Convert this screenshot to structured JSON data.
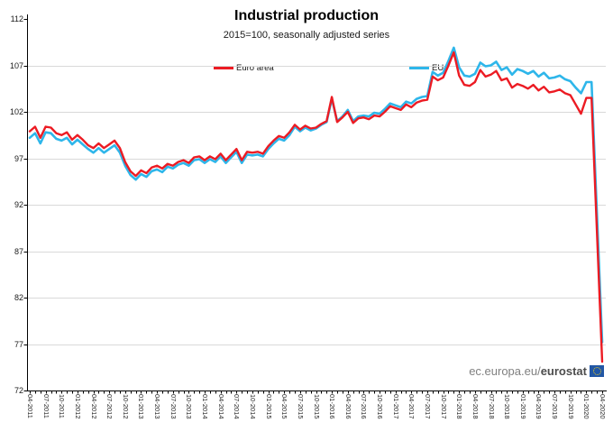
{
  "title": "Industrial production",
  "subtitle": "2015=100, seasonally adjusted series",
  "watermark": {
    "prefix": "ec.europa.eu/",
    "brand": "eurostat",
    "logo": "eu-flag-icon"
  },
  "chart_data": {
    "type": "line",
    "title": "Industrial production",
    "subtitle": "2015=100, seasonally adjusted series",
    "x_start": "04-2011",
    "x_end": "04-2020",
    "x_frequency": "monthly",
    "x_tick_labels": [
      "04-2011",
      "07-2011",
      "10-2011",
      "01-2012",
      "04-2012",
      "07-2012",
      "10-2012",
      "01-2013",
      "04-2013",
      "07-2013",
      "10-2013",
      "01-2014",
      "04-2014",
      "07-2014",
      "10-2014",
      "01-2015",
      "04-2015",
      "07-2015",
      "10-2015",
      "01-2016",
      "04-2016",
      "07-2016",
      "10-2016",
      "01-2017",
      "04-2017",
      "07-2017",
      "10-2017",
      "01-2018",
      "04-2018",
      "07-2018",
      "10-2018",
      "01-2019",
      "04-2019",
      "07-2019",
      "10-2019",
      "01-2020",
      "04-2020"
    ],
    "ylim": [
      72,
      112
    ],
    "yticks": [
      72,
      77,
      82,
      87,
      92,
      97,
      102,
      107,
      112
    ],
    "grid": "horizontal",
    "legend_position": "top",
    "colors": {
      "grid": "#d9d9d9",
      "axis": "#000000"
    },
    "series": [
      {
        "name": "Euro area",
        "color": "#ec1b23",
        "values": [
          99.9,
          100.4,
          99.2,
          100.4,
          100.3,
          99.7,
          99.5,
          99.8,
          99.0,
          99.5,
          99.0,
          98.4,
          98.1,
          98.6,
          98.1,
          98.5,
          98.9,
          98.1,
          96.6,
          95.6,
          95.1,
          95.7,
          95.4,
          96.0,
          96.2,
          95.9,
          96.4,
          96.2,
          96.6,
          96.8,
          96.5,
          97.1,
          97.2,
          96.8,
          97.2,
          96.9,
          97.5,
          96.8,
          97.4,
          98.0,
          96.8,
          97.7,
          97.6,
          97.7,
          97.5,
          98.3,
          98.9,
          99.4,
          99.2,
          99.8,
          100.6,
          100.1,
          100.5,
          100.2,
          100.3,
          100.7,
          101.0,
          103.6,
          100.9,
          101.4,
          102.0,
          100.8,
          101.3,
          101.4,
          101.2,
          101.6,
          101.5,
          102.0,
          102.6,
          102.4,
          102.2,
          102.8,
          102.5,
          103.0,
          103.2,
          103.3,
          105.8,
          105.4,
          105.7,
          107.0,
          108.4,
          105.9,
          104.9,
          104.8,
          105.2,
          106.5,
          105.8,
          106.0,
          106.4,
          105.4,
          105.6,
          104.6,
          105.0,
          104.8,
          104.5,
          104.9,
          104.3,
          104.7,
          104.1,
          104.2,
          104.4,
          104.0,
          103.8,
          102.8,
          101.8,
          103.5,
          103.5,
          89.3,
          75.1
        ]
      },
      {
        "name": "EU",
        "color": "#2eb6ea",
        "values": [
          99.2,
          99.7,
          98.6,
          99.8,
          99.7,
          99.1,
          98.9,
          99.2,
          98.5,
          99.0,
          98.5,
          98.0,
          97.6,
          98.1,
          97.6,
          98.0,
          98.4,
          97.6,
          96.2,
          95.2,
          94.7,
          95.3,
          95.0,
          95.6,
          95.8,
          95.5,
          96.1,
          95.9,
          96.3,
          96.5,
          96.2,
          96.8,
          96.9,
          96.5,
          96.9,
          96.6,
          97.2,
          96.5,
          97.1,
          97.7,
          96.5,
          97.4,
          97.3,
          97.4,
          97.2,
          98.0,
          98.6,
          99.1,
          98.9,
          99.5,
          100.4,
          99.9,
          100.3,
          100.0,
          100.2,
          100.6,
          100.9,
          103.4,
          101.0,
          101.5,
          102.2,
          101.0,
          101.5,
          101.6,
          101.5,
          101.9,
          101.8,
          102.3,
          102.9,
          102.7,
          102.5,
          103.1,
          102.9,
          103.4,
          103.6,
          103.7,
          106.3,
          105.9,
          106.2,
          107.5,
          108.9,
          106.8,
          105.9,
          105.8,
          106.1,
          107.3,
          106.9,
          107.0,
          107.4,
          106.5,
          106.8,
          106.0,
          106.6,
          106.4,
          106.1,
          106.4,
          105.8,
          106.2,
          105.6,
          105.7,
          105.9,
          105.5,
          105.3,
          104.6,
          104.0,
          105.2,
          105.2,
          91.2,
          77.2
        ]
      }
    ]
  }
}
